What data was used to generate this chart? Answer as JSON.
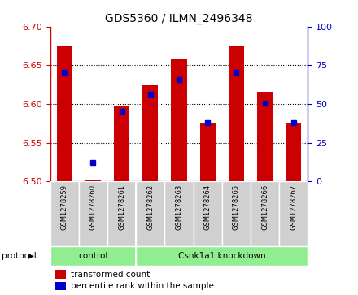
{
  "title": "GDS5360 / ILMN_2496348",
  "samples": [
    "GSM1278259",
    "GSM1278260",
    "GSM1278261",
    "GSM1278262",
    "GSM1278263",
    "GSM1278264",
    "GSM1278265",
    "GSM1278266",
    "GSM1278267"
  ],
  "transformed_counts": [
    6.676,
    6.502,
    6.598,
    6.624,
    6.658,
    6.576,
    6.676,
    6.616,
    6.576
  ],
  "percentile_y_values": [
    6.641,
    6.524,
    6.59,
    6.613,
    6.631,
    6.576,
    6.641,
    6.601,
    6.576
  ],
  "ylim_left": [
    6.5,
    6.7
  ],
  "ylim_right": [
    0,
    100
  ],
  "yticks_left": [
    6.5,
    6.55,
    6.6,
    6.65,
    6.7
  ],
  "yticks_right": [
    0,
    25,
    50,
    75,
    100
  ],
  "bar_color": "#cc0000",
  "bar_base": 6.5,
  "percentile_color": "#0000cc",
  "left_tick_color": "#cc0000",
  "right_tick_color": "#0000cc",
  "grid_ticks": [
    6.55,
    6.6,
    6.65
  ],
  "control_count": 3,
  "knockdown_label": "Csnk1a1 knockdown",
  "control_label": "control",
  "protocol_label": "protocol",
  "legend1": "transformed count",
  "legend2": "percentile rank within the sample",
  "group_color": "#90ee90",
  "sample_box_color": "#d0d0d0",
  "bar_width": 0.55,
  "xlim": [
    -0.5,
    8.5
  ]
}
